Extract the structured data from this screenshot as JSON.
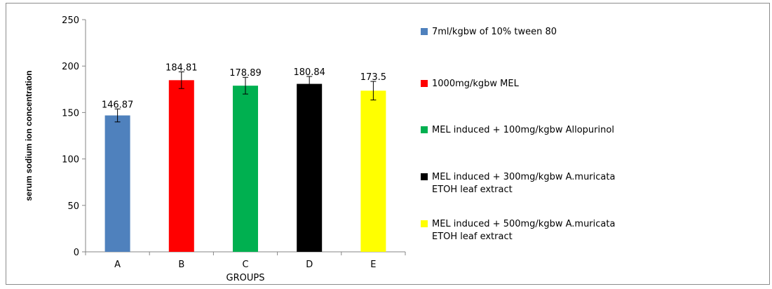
{
  "chart_data": {
    "type": "bar",
    "title": "",
    "xlabel": "GROUPS",
    "ylabel": "serum sodium ion concentration",
    "ylim": [
      0,
      250
    ],
    "yticks": [
      0,
      50,
      100,
      150,
      200,
      250
    ],
    "grid": false,
    "legend_position": "right",
    "categories": [
      "A",
      "B",
      "C",
      "D",
      "E"
    ],
    "values": [
      146.87,
      184.81,
      178.89,
      180.84,
      173.5
    ],
    "data_labels": [
      "146.87",
      "184.81",
      "178.89",
      "180.84",
      "173.5"
    ],
    "errors": [
      7,
      9,
      9,
      8,
      10
    ],
    "colors": [
      "#4f81bd",
      "#ff0000",
      "#00b050",
      "#000000",
      "#ffff00"
    ],
    "legend": [
      {
        "lines": [
          "7ml/kgbw of 10% tween 80"
        ],
        "color": "#4f81bd"
      },
      {
        "lines": [
          "1000mg/kgbw MEL"
        ],
        "color": "#ff0000"
      },
      {
        "lines": [
          "MEL induced + 100mg/kgbw Allopurinol"
        ],
        "color": "#00b050"
      },
      {
        "lines": [
          "MEL induced + 300mg/kgbw A.muricata",
          "ETOH leaf extract"
        ],
        "color": "#000000"
      },
      {
        "lines": [
          "MEL induced + 500mg/kgbw A.muricata",
          "ETOH leaf extract"
        ],
        "color": "#ffff00"
      }
    ]
  }
}
